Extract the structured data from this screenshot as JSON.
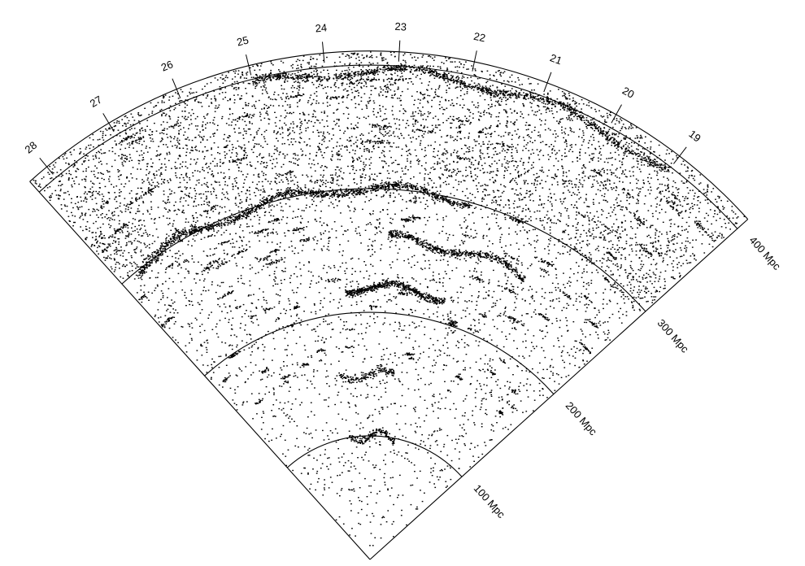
{
  "chart_data": {
    "type": "scatter",
    "projection": "polar-wedge",
    "angle_ticks": [
      "19",
      "20",
      "21",
      "22",
      "23",
      "24",
      "25",
      "26",
      "27",
      "28"
    ],
    "radial_ticks": [
      {
        "value": 100,
        "label": "100 Mpc"
      },
      {
        "value": 200,
        "label": "200 Mpc"
      },
      {
        "value": 300,
        "label": "300 Mpc"
      },
      {
        "value": 400,
        "label": "400 Mpc"
      }
    ],
    "radial_range": [
      0,
      440
    ],
    "angle_range_label_span": [
      "28",
      "19"
    ],
    "point_color": "#000000",
    "structures": [
      {
        "name": "",
        "r_mpc": 300,
        "angle_from": "28",
        "angle_to": "21.5",
        "strength": "strong"
      },
      {
        "name": "",
        "r_mpc": 395,
        "angle_from": "25",
        "angle_to": "19",
        "strength": "strong"
      },
      {
        "name": "",
        "r_mpc": 420,
        "angle_from": "28",
        "angle_to": "24",
        "strength": "strong"
      },
      {
        "name": "",
        "r_mpc": 260,
        "angle_from": "23",
        "angle_to": "20",
        "strength": "medium"
      },
      {
        "name": "",
        "r_mpc": 220,
        "angle_from": "24",
        "angle_to": "21.5",
        "strength": "medium"
      },
      {
        "name": "",
        "r_mpc": 150,
        "angle_from": "24.5",
        "angle_to": "22.5",
        "strength": "weak"
      },
      {
        "name": "",
        "r_mpc": 100,
        "angle_from": "24.5",
        "angle_to": "22",
        "strength": "weak"
      }
    ]
  }
}
